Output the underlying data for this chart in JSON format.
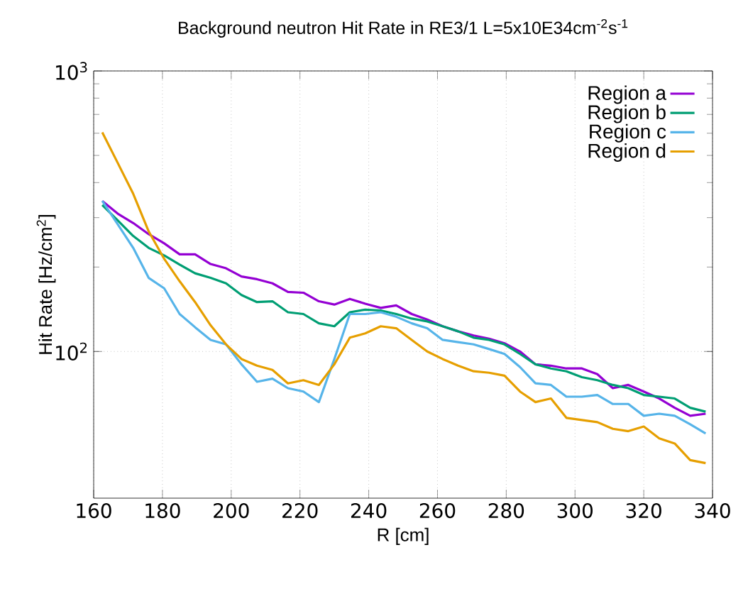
{
  "chart_data": {
    "type": "line",
    "title": "Background neutron Hit Rate in RE3/1   L=5x10E34cm$^{-2}$s$^{-1}$",
    "xlabel": "R [cm]",
    "ylabel": "Hit Rate [Hz/cm$^{2}$]",
    "x": [
      162.5,
      167,
      171.5,
      176,
      180.5,
      185,
      189.5,
      194,
      198.5,
      203,
      207.5,
      212,
      216.5,
      221,
      225.5,
      230,
      234.5,
      239,
      243.5,
      248,
      252.5,
      257,
      261.5,
      266,
      270.5,
      275,
      279.5,
      284,
      288.5,
      293,
      297.5,
      302,
      306.5,
      311,
      315.5,
      320,
      324.5,
      329,
      333.5,
      338
    ],
    "series": [
      {
        "name": "Region a",
        "color": "#9400d3",
        "values": [
          344,
          310,
          287,
          262,
          243,
          222,
          222,
          205,
          198,
          185,
          181,
          175,
          163,
          162,
          151,
          147,
          154,
          148,
          143,
          146,
          136,
          130,
          123,
          118,
          114,
          111,
          107,
          100,
          90,
          89,
          87,
          87,
          83,
          74,
          76,
          72,
          68,
          63,
          59,
          60
        ]
      },
      {
        "name": "Region b",
        "color": "#009e73",
        "values": [
          333,
          293,
          258,
          234,
          220,
          204,
          190,
          183,
          175,
          159,
          150,
          151,
          138,
          136,
          126,
          123,
          138,
          141,
          140,
          136,
          131,
          128,
          123,
          118,
          112,
          110,
          106,
          98,
          90,
          87,
          85,
          81,
          79,
          76,
          74,
          70,
          69,
          68,
          63,
          61
        ]
      },
      {
        "name": "Region c",
        "color": "#56b4e9",
        "values": [
          344,
          284,
          234,
          183,
          168,
          136,
          122,
          110,
          106,
          90,
          78,
          80,
          74,
          72,
          66,
          94,
          136,
          136,
          138,
          133,
          126,
          121,
          110,
          108,
          106,
          102,
          98,
          88,
          77,
          76,
          69,
          69,
          70,
          65,
          65,
          59,
          60,
          59,
          55,
          51
        ]
      },
      {
        "name": "Region d",
        "color": "#e69f00",
        "values": [
          604,
          470,
          365,
          268,
          214,
          178,
          150,
          124,
          106,
          94,
          89,
          86,
          77,
          79,
          76,
          90,
          112,
          116,
          123,
          121,
          110,
          100,
          94,
          89,
          85,
          84,
          82,
          72,
          66,
          68,
          58,
          57,
          56,
          53,
          52,
          54,
          49,
          47,
          41,
          40
        ]
      }
    ],
    "xlim": [
      160,
      340
    ],
    "xticks": [
      160,
      180,
      200,
      220,
      240,
      260,
      280,
      300,
      320,
      340
    ],
    "ylim": [
      30,
      1000
    ],
    "yticks": [
      {
        "value": 100,
        "label": "10$^{2}$"
      },
      {
        "value": 1000,
        "label": "10$^{3}$"
      }
    ],
    "log": "y",
    "grid": true,
    "legend": "top right",
    "marker": "none",
    "line_style": "solid"
  }
}
